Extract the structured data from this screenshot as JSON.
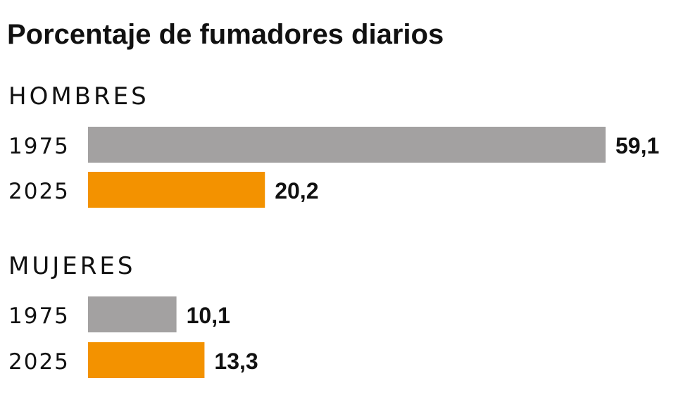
{
  "chart_data": {
    "type": "bar",
    "orientation": "horizontal",
    "title": "Porcentaje de fumadores diarios",
    "xlabel": "",
    "ylabel": "",
    "xlim": [
      0,
      60
    ],
    "grid": false,
    "groups": [
      {
        "name": "HOMBRES",
        "bars": [
          {
            "label": "1975",
            "value": 59.1,
            "display": "59,1"
          },
          {
            "label": "2025",
            "value": 20.2,
            "display": "20,2"
          }
        ]
      },
      {
        "name": "MUJERES",
        "bars": [
          {
            "label": "1975",
            "value": 10.1,
            "display": "10,1"
          },
          {
            "label": "2025",
            "value": 13.3,
            "display": "13,3"
          }
        ]
      }
    ],
    "colors": {
      "1975": "#a3a1a1",
      "2025": "#f39200"
    }
  }
}
